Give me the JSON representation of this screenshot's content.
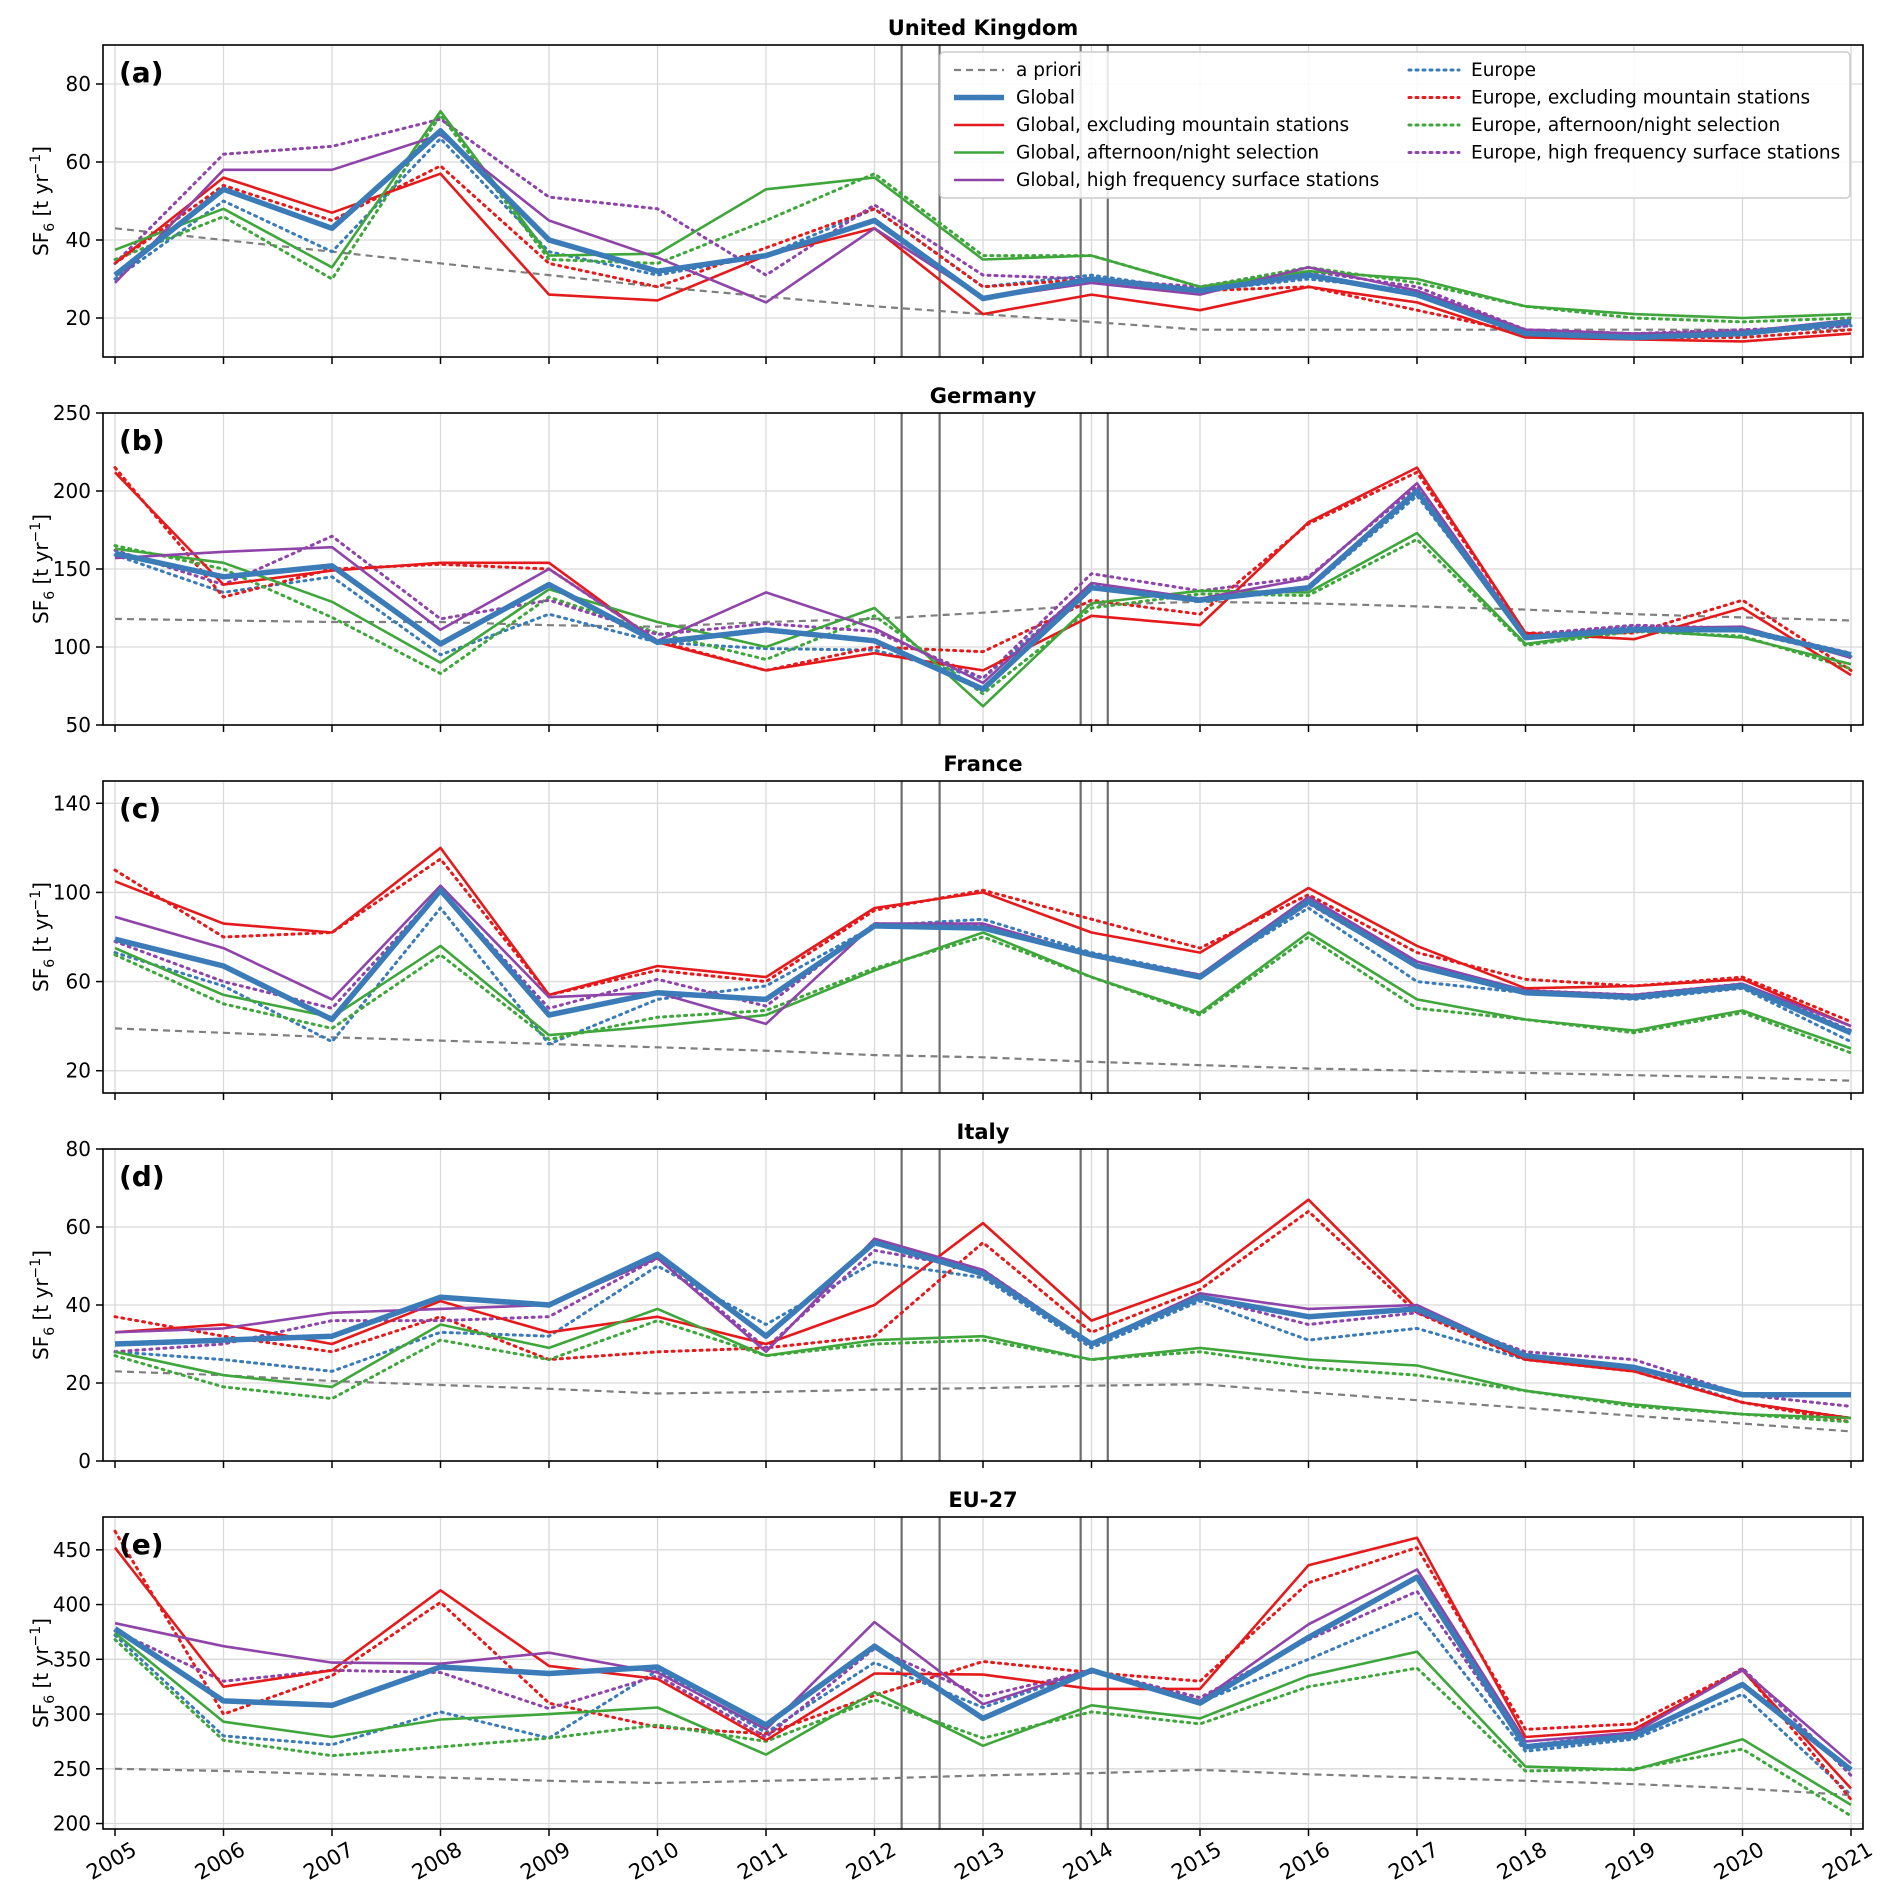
{
  "years": [
    "2005",
    "2006",
    "2007",
    "2008",
    "2009",
    "2010",
    "2011",
    "2012",
    "2013",
    "2014",
    "2015",
    "2016",
    "2017",
    "2018",
    "2019",
    "2020",
    "2021"
  ],
  "colors": {
    "apriori": "#7f7f7f",
    "global": "#3a7bb8",
    "mountain": "#e41a1c",
    "afternoon": "#3fa63c",
    "highfreq": "#8e44a8",
    "vline": "#6e6e6e",
    "grid": "#d9d9d9"
  },
  "ylabel": "SF6 [t yr-1]",
  "legend": {
    "placement": "top-right of panel (a)",
    "entries": [
      {
        "key": "apriori",
        "label": "a priori",
        "style": "dashed"
      },
      {
        "key": "global",
        "label": "Global",
        "style": "thick"
      },
      {
        "key": "global_mountain",
        "label": "Global, excluding mountain stations",
        "style": "solid"
      },
      {
        "key": "global_afternoon",
        "label": "Global, afternoon/night selection",
        "style": "solid"
      },
      {
        "key": "global_highfreq",
        "label": "Global, high frequency surface stations",
        "style": "solid"
      },
      {
        "key": "europe",
        "label": "Europe",
        "style": "dotted"
      },
      {
        "key": "europe_mountain",
        "label": "Europe, excluding mountain stations",
        "style": "dotted"
      },
      {
        "key": "europe_afternoon",
        "label": "Europe, afternoon/night selection",
        "style": "dotted"
      },
      {
        "key": "europe_highfreq",
        "label": "Europe, high frequency surface stations",
        "style": "dotted"
      }
    ]
  },
  "vertical_lines_years": [
    2012.25,
    2012.6,
    2013.9,
    2014.15
  ],
  "chart_data": [
    {
      "type": "line",
      "panel": "(a)",
      "title": "United Kingdom",
      "ylim": [
        10,
        90
      ],
      "yticks": [
        20,
        40,
        60,
        80
      ],
      "series": {
        "apriori": [
          43,
          40,
          37,
          34,
          31,
          28,
          25.5,
          23,
          21,
          19,
          17,
          17,
          17,
          17,
          17,
          17,
          17
        ],
        "global": [
          31,
          53,
          43,
          68,
          40,
          32,
          36,
          45,
          25,
          30,
          27,
          31,
          26,
          16,
          15,
          16,
          19
        ],
        "global_mountain": [
          34,
          56,
          47,
          57,
          26,
          24.5,
          36,
          43,
          21,
          26,
          22,
          28,
          24,
          15,
          14.5,
          14,
          16
        ],
        "global_afternoon": [
          37.5,
          48,
          33,
          73,
          36,
          36.5,
          53,
          56,
          35,
          36,
          28,
          32,
          30,
          23,
          21,
          20,
          21
        ],
        "global_highfreq": [
          29,
          58,
          58,
          67,
          45,
          35.5,
          24,
          43,
          25,
          29,
          26,
          33,
          27,
          17,
          16,
          16.5,
          19.5
        ],
        "europe": [
          30,
          50,
          37,
          66,
          37,
          31,
          36,
          48,
          28,
          31,
          27,
          30,
          27,
          17,
          15,
          16,
          18
        ],
        "europe_mountain": [
          34,
          54,
          45,
          59,
          34,
          28,
          38,
          48,
          28,
          30,
          27,
          28,
          22,
          16,
          15,
          15,
          17
        ],
        "europe_afternoon": [
          35,
          46,
          30,
          72,
          35,
          34,
          45,
          57,
          36,
          36,
          28,
          33,
          29,
          23,
          20,
          19,
          20
        ],
        "europe_highfreq": [
          34,
          62,
          64,
          71,
          51,
          48,
          31,
          49,
          31,
          30,
          28,
          32,
          28,
          17,
          16,
          17,
          18
        ]
      }
    },
    {
      "type": "line",
      "panel": "(b)",
      "title": "Germany",
      "ylim": [
        50,
        250
      ],
      "yticks": [
        50,
        100,
        150,
        200,
        250
      ],
      "series": {
        "apriori": [
          118,
          117,
          116,
          116,
          114,
          113,
          116,
          118,
          122,
          127,
          129,
          128,
          126,
          124,
          121,
          119,
          117
        ],
        "global": [
          160,
          145,
          152,
          102,
          140,
          103,
          111,
          104,
          73,
          138,
          130,
          138,
          200,
          106,
          111,
          111,
          95
        ],
        "global_mountain": [
          212,
          140,
          149,
          154,
          154,
          103,
          85,
          96,
          85,
          120,
          114,
          180,
          215,
          109,
          105,
          125,
          82
        ],
        "global_afternoon": [
          163,
          154,
          129,
          90,
          137,
          116,
          100,
          125,
          62,
          128,
          136,
          135,
          173,
          102,
          111,
          106,
          89
        ],
        "global_highfreq": [
          157,
          161,
          164,
          111,
          150,
          104,
          135,
          112,
          77,
          141,
          131,
          144,
          205,
          107,
          112,
          113,
          93
        ],
        "europe": [
          159,
          135,
          145,
          95,
          121,
          103,
          99,
          98,
          80,
          140,
          131,
          137,
          197,
          107,
          113,
          110,
          94
        ],
        "europe_mountain": [
          215,
          132,
          150,
          153,
          150,
          104,
          85,
          100,
          97,
          130,
          121,
          179,
          212,
          109,
          109,
          130,
          85
        ],
        "europe_afternoon": [
          165,
          150,
          119,
          83,
          132,
          109,
          92,
          120,
          70,
          125,
          134,
          133,
          169,
          101,
          110,
          107,
          86
        ],
        "europe_highfreq": [
          162,
          140,
          171,
          118,
          130,
          108,
          115,
          110,
          80,
          147,
          136,
          145,
          203,
          108,
          114,
          112,
          96
        ]
      }
    },
    {
      "type": "line",
      "panel": "(c)",
      "title": "France",
      "ylim": [
        10,
        150
      ],
      "yticks": [
        20,
        60,
        100,
        140
      ],
      "series": {
        "apriori": [
          39,
          37,
          35,
          33.5,
          32,
          30.5,
          29,
          27,
          26,
          24,
          22.5,
          21,
          20,
          19,
          18,
          17,
          15.5
        ],
        "global": [
          79,
          67,
          43,
          101,
          45,
          55,
          52,
          85,
          84,
          72,
          62,
          96,
          67,
          55,
          53,
          58,
          37
        ],
        "global_mountain": [
          105,
          86,
          82,
          120,
          54,
          67,
          62,
          93,
          100,
          82,
          73,
          102,
          76,
          57,
          58,
          61,
          40
        ],
        "global_afternoon": [
          75,
          54,
          44,
          76,
          36,
          40,
          45,
          65,
          82,
          62,
          46,
          82,
          52,
          43,
          38,
          47,
          30
        ],
        "global_highfreq": [
          89,
          75,
          52,
          103,
          53,
          55,
          41,
          86,
          86,
          72,
          63,
          98,
          69,
          56,
          54,
          59,
          40
        ],
        "europe": [
          73,
          58,
          33,
          93,
          32,
          52,
          58,
          85,
          88,
          73,
          63,
          93,
          60,
          55,
          52,
          57,
          33
        ],
        "europe_mountain": [
          110,
          80,
          82,
          115,
          54,
          65,
          60,
          92,
          101,
          88,
          75,
          99,
          73,
          61,
          58,
          62,
          42
        ],
        "europe_afternoon": [
          72,
          50,
          39,
          72,
          34,
          44,
          47,
          66,
          80,
          62,
          45,
          80,
          48,
          43,
          37,
          46,
          28
        ],
        "europe_highfreq": [
          78,
          60,
          48,
          101,
          48,
          61,
          49,
          86,
          85,
          72,
          63,
          95,
          67,
          56,
          54,
          59,
          38
        ]
      }
    },
    {
      "type": "line",
      "panel": "(d)",
      "title": "Italy",
      "ylim": [
        0,
        80
      ],
      "yticks": [
        0,
        20,
        40,
        60,
        80
      ],
      "series": {
        "apriori": [
          23,
          22,
          20.5,
          19.5,
          18.5,
          17.3,
          17.7,
          18.3,
          18.7,
          19.3,
          19.7,
          17.6,
          15.6,
          13.6,
          11.6,
          9.6,
          7.6
        ],
        "global": [
          30,
          31,
          32,
          42,
          40,
          53,
          32,
          56,
          48,
          30,
          42,
          37,
          39,
          27,
          24,
          17,
          17
        ],
        "global_mountain": [
          33,
          35,
          30,
          41,
          33,
          37,
          30,
          40,
          61,
          36,
          46,
          67,
          39,
          26,
          23,
          15,
          11
        ],
        "global_afternoon": [
          28,
          22,
          19,
          35,
          29,
          39,
          27,
          31,
          32,
          26,
          29,
          26,
          24.5,
          18,
          14.5,
          12,
          11
        ],
        "global_highfreq": [
          33,
          34,
          38,
          39,
          40,
          52,
          28,
          57,
          49,
          30,
          43,
          39,
          40,
          27,
          24,
          17,
          17
        ],
        "europe": [
          28,
          26,
          23,
          33,
          32,
          50,
          35,
          51,
          47,
          29,
          41,
          31,
          34,
          26,
          24,
          15,
          11
        ],
        "europe_mountain": [
          37,
          32,
          28,
          37,
          26,
          28,
          29,
          32,
          56,
          33,
          44,
          64,
          38,
          26,
          23,
          15,
          10
        ],
        "europe_afternoon": [
          27,
          19,
          16,
          31,
          26,
          36,
          27,
          30,
          31,
          26,
          28,
          24,
          22,
          18,
          14,
          12,
          10
        ],
        "europe_highfreq": [
          28,
          30,
          36,
          36,
          37,
          52,
          29,
          54,
          49,
          30,
          42,
          35,
          38,
          28,
          26,
          17,
          14
        ]
      }
    },
    {
      "type": "line",
      "panel": "(e)",
      "title": "EU-27",
      "ylim": [
        195,
        480
      ],
      "yticks": [
        200,
        250,
        300,
        350,
        400,
        450
      ],
      "series": {
        "apriori": [
          250,
          248,
          245,
          242,
          239,
          237,
          239,
          241,
          244,
          246,
          249,
          245,
          242,
          239,
          236,
          232,
          226
        ],
        "global": [
          378,
          312,
          308,
          343,
          337,
          343,
          290,
          362,
          296,
          340,
          310,
          370,
          425,
          270,
          280,
          327,
          249
        ],
        "global_mountain": [
          452,
          325,
          340,
          413,
          344,
          332,
          276,
          337,
          336,
          323,
          323,
          436,
          461,
          279,
          286,
          340,
          232
        ],
        "global_afternoon": [
          374,
          293,
          279,
          295,
          300,
          306,
          263,
          320,
          271,
          308,
          296,
          335,
          357,
          252,
          249,
          277,
          217
        ],
        "global_highfreq": [
          383,
          362,
          347,
          346,
          356,
          338,
          286,
          384,
          309,
          341,
          312,
          382,
          432,
          275,
          283,
          340,
          255
        ],
        "europe": [
          372,
          280,
          272,
          302,
          278,
          340,
          283,
          347,
          306,
          340,
          311,
          350,
          392,
          266,
          277,
          318,
          226
        ],
        "europe_mountain": [
          467,
          300,
          335,
          402,
          310,
          288,
          282,
          317,
          348,
          338,
          330,
          420,
          452,
          286,
          291,
          341,
          222
        ],
        "europe_afternoon": [
          368,
          276,
          262,
          270,
          278,
          290,
          275,
          313,
          278,
          302,
          291,
          325,
          342,
          248,
          250,
          268,
          207
        ],
        "europe_highfreq": [
          376,
          330,
          340,
          338,
          305,
          335,
          279,
          360,
          316,
          340,
          315,
          368,
          412,
          271,
          283,
          342,
          244
        ]
      }
    }
  ]
}
